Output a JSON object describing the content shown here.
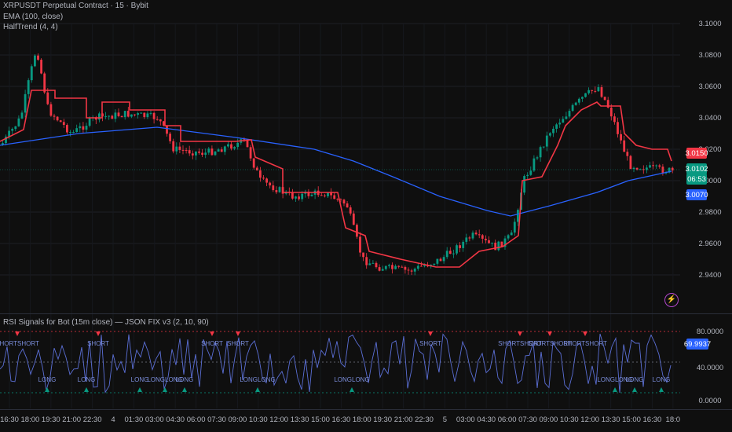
{
  "legend": {
    "symbol": "XRPUSDT Perpetual Contract · 15 · Bybit",
    "ema": "EMA (100, close)",
    "halftrend": "HalfTrend (4, 4)",
    "rsi_title": "RSI Signals for Bot (15m close) — JSON FIX v3 (2, 10, 90)"
  },
  "price_axis": {
    "ticks": [
      "3.1000",
      "3.0800",
      "3.0600",
      "3.0400",
      "3.0200",
      "3.0000",
      "2.9800",
      "2.9600",
      "2.9400"
    ],
    "tags": [
      {
        "text": "3.0150",
        "color": "#f23645"
      },
      {
        "text": "3.0102",
        "color": "#089981"
      },
      {
        "text": "06:53",
        "color": "#089981"
      },
      {
        "text": "3.0070",
        "color": "#2962ff"
      }
    ]
  },
  "rsi_axis": {
    "ticks": [
      "80.0000",
      "40.0000",
      "0.0000"
    ],
    "tag": {
      "text": "69.9937",
      "color": "#2962ff"
    }
  },
  "time_axis": {
    "ticks": [
      "16:30",
      "18:00",
      "19:30",
      "21:00",
      "22:30",
      "4",
      "01:30",
      "03:00",
      "04:30",
      "06:00",
      "07:30",
      "09:00",
      "10:30",
      "12:00",
      "13:30",
      "15:00",
      "16:30",
      "18:00",
      "19:30",
      "21:00",
      "22:30",
      "5",
      "03:00",
      "04:30",
      "06:00",
      "07:30",
      "09:00",
      "10:30",
      "12:00",
      "13:30",
      "15:00",
      "16:30",
      "18:0"
    ]
  },
  "signals": {
    "short_label": "SHORT",
    "long_label": "LONG",
    "short_groups": [
      "SHORTSHORT",
      "SHORT",
      "SHORT",
      "SHORT",
      "SHORT",
      "SHORTSHORT",
      "SHORTSHORT",
      "SHORTSHORT"
    ],
    "long_groups": [
      "LONG",
      "LONG",
      "LONG",
      "LONGLONG",
      "LONG",
      "LONGLONG",
      "LONGLONG",
      "LONGLONG",
      "LONG",
      "LONG"
    ]
  },
  "colors": {
    "background": "#0f0f0f",
    "up": "#089981",
    "down": "#f23645",
    "ema": "#2962ff",
    "halftrend_down": "#f23645",
    "halftrend_up": "#2962ff",
    "rsi_line": "#5b6fd6"
  },
  "icons": [
    "lightning-icon"
  ]
}
